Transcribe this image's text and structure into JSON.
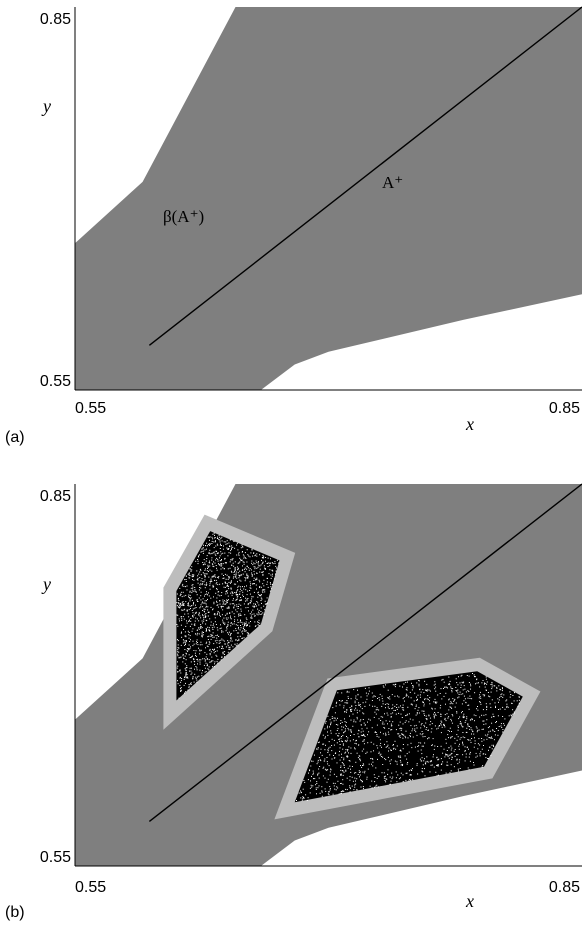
{
  "colors": {
    "basin": "#7f7f7f",
    "fractal_boundary": "#bdbdbd",
    "attractor": "#000000",
    "background": "#ffffff"
  },
  "chart_data": [
    {
      "type": "area",
      "panel_label": "(a)",
      "xlim": [
        0.55,
        0.85
      ],
      "ylim": [
        0.55,
        0.85
      ],
      "x_ticks": [
        "0.55",
        "0.85"
      ],
      "y_ticks": [
        "0.85",
        "0.55"
      ],
      "xlabel": "x",
      "ylabel": "y",
      "basin_label": "β(A⁺)",
      "attractor_label": "A⁺",
      "basin_boundary": [
        [
          0.645,
          0.85
        ],
        [
          0.85,
          0.85
        ],
        [
          0.85,
          0.625
        ],
        [
          0.78,
          0.605
        ],
        [
          0.7,
          0.58
        ],
        [
          0.68,
          0.57
        ],
        [
          0.66,
          0.55
        ],
        [
          0.55,
          0.55
        ],
        [
          0.55,
          0.665
        ],
        [
          0.59,
          0.713
        ]
      ],
      "attractor_segment": [
        [
          0.594,
          0.585
        ],
        [
          0.85,
          0.85
        ]
      ]
    },
    {
      "type": "scatter",
      "panel_label": "(b)",
      "xlim": [
        0.55,
        0.85
      ],
      "ylim": [
        0.55,
        0.85
      ],
      "x_ticks": [
        "0.55",
        "0.85"
      ],
      "y_ticks": [
        "0.85",
        "0.55"
      ],
      "xlabel": "x",
      "ylabel": "y",
      "basin_boundary": [
        [
          0.645,
          0.85
        ],
        [
          0.85,
          0.85
        ],
        [
          0.85,
          0.625
        ],
        [
          0.78,
          0.605
        ],
        [
          0.7,
          0.58
        ],
        [
          0.68,
          0.57
        ],
        [
          0.66,
          0.55
        ],
        [
          0.55,
          0.55
        ],
        [
          0.55,
          0.665
        ],
        [
          0.59,
          0.713
        ]
      ],
      "attractor_segment": [
        [
          0.594,
          0.585
        ],
        [
          0.85,
          0.85
        ]
      ],
      "chaotic_regions": [
        [
          [
            0.63,
            0.813
          ],
          [
            0.671,
            0.79
          ],
          [
            0.66,
            0.74
          ],
          [
            0.61,
            0.68
          ],
          [
            0.61,
            0.766
          ]
        ],
        [
          [
            0.705,
            0.688
          ],
          [
            0.788,
            0.703
          ],
          [
            0.815,
            0.683
          ],
          [
            0.792,
            0.628
          ],
          [
            0.68,
            0.6
          ]
        ]
      ]
    }
  ]
}
